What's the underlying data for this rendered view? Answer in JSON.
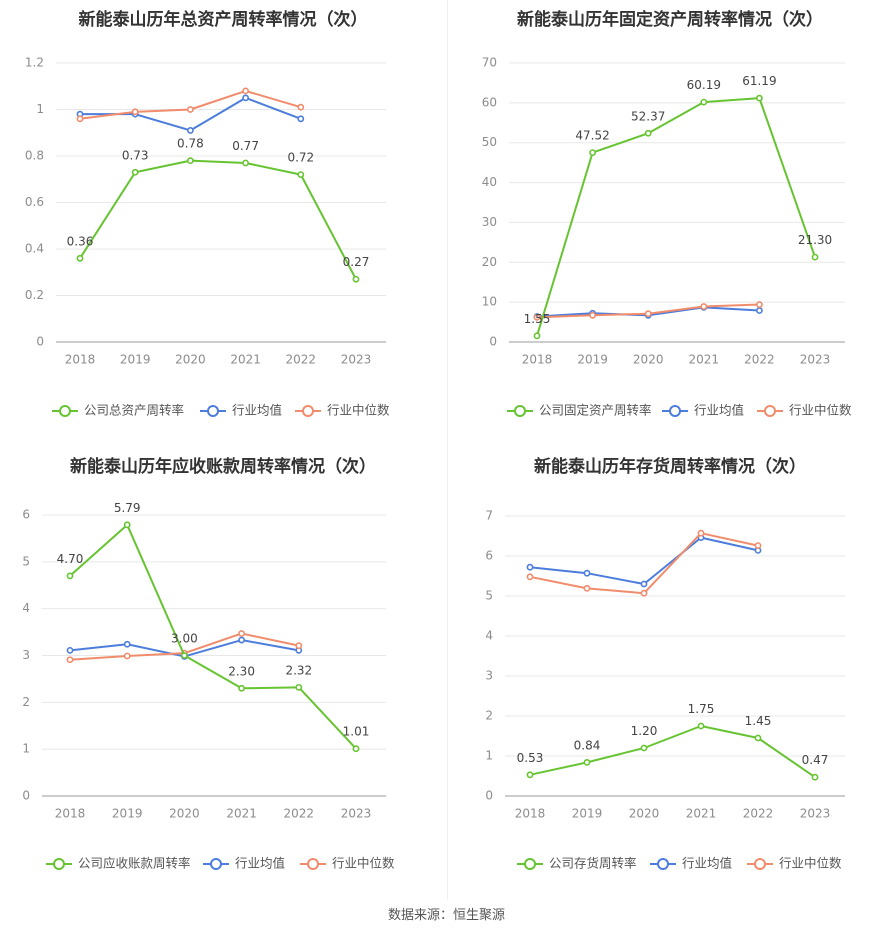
{
  "source_text": "数据来源：恒生聚源",
  "colors": {
    "company": "#66c431",
    "industry_avg": "#4c7ddc",
    "industry_median": "#f08c6c",
    "axis_text": "#8c8c8c",
    "grid": "#e8e8e8",
    "title": "#333333",
    "label": "#444444"
  },
  "legend_icon": "circle-line-icon",
  "chart_data": [
    {
      "type": "line",
      "title": "新能泰山历年总资产周转率情况（次）",
      "categories": [
        "2018",
        "2019",
        "2020",
        "2021",
        "2022",
        "2023"
      ],
      "yticks": [
        "0",
        "0.2",
        "0.4",
        "0.6",
        "0.8",
        "1",
        "1.2"
      ],
      "ylim": [
        0,
        1.2
      ],
      "grid": true,
      "legend_position": "bottom",
      "series": [
        {
          "name": "公司总资产周转率",
          "key": "company",
          "values": [
            0.36,
            0.73,
            0.78,
            0.77,
            0.72,
            0.27
          ],
          "labels": [
            "0.36",
            "0.73",
            "0.78",
            "0.77",
            "0.72",
            "0.27"
          ]
        },
        {
          "name": "行业均值",
          "key": "industry_avg",
          "values": [
            0.98,
            0.98,
            0.91,
            1.05,
            0.96,
            null
          ]
        },
        {
          "name": "行业中位数",
          "key": "industry_median",
          "values": [
            0.96,
            0.99,
            1.0,
            1.08,
            1.01,
            null
          ]
        }
      ]
    },
    {
      "type": "line",
      "title": "新能泰山历年固定资产周转率情况（次）",
      "categories": [
        "2018",
        "2019",
        "2020",
        "2021",
        "2022",
        "2023"
      ],
      "yticks": [
        "0",
        "10",
        "20",
        "30",
        "40",
        "50",
        "60",
        "70"
      ],
      "ylim": [
        0,
        70
      ],
      "grid": true,
      "legend_position": "bottom",
      "series": [
        {
          "name": "公司固定资产周转率",
          "key": "company",
          "values": [
            1.55,
            47.52,
            52.37,
            60.19,
            61.19,
            21.3
          ],
          "labels": [
            "1.55",
            "47.52",
            "52.37",
            "60.19",
            "61.19",
            "21.30"
          ]
        },
        {
          "name": "行业均值",
          "key": "industry_avg",
          "values": [
            6.4,
            7.2,
            6.7,
            8.7,
            7.9,
            null
          ]
        },
        {
          "name": "行业中位数",
          "key": "industry_median",
          "values": [
            6.2,
            6.7,
            7.1,
            8.9,
            9.4,
            null
          ]
        }
      ]
    },
    {
      "type": "line",
      "title": "新能泰山历年应收账款周转率情况（次）",
      "categories": [
        "2018",
        "2019",
        "2020",
        "2021",
        "2022",
        "2023"
      ],
      "yticks": [
        "0",
        "1",
        "2",
        "3",
        "4",
        "5",
        "6"
      ],
      "ylim": [
        0,
        6
      ],
      "grid": true,
      "legend_position": "bottom",
      "series": [
        {
          "name": "公司应收账款周转率",
          "key": "company",
          "values": [
            4.7,
            5.79,
            3.0,
            2.3,
            2.32,
            1.01
          ],
          "labels": [
            "4.70",
            "5.79",
            "3.00",
            "2.30",
            "2.32",
            "1.01"
          ]
        },
        {
          "name": "行业均值",
          "key": "industry_avg",
          "values": [
            3.11,
            3.24,
            2.98,
            3.33,
            3.11,
            null
          ]
        },
        {
          "name": "行业中位数",
          "key": "industry_median",
          "values": [
            2.91,
            2.99,
            3.05,
            3.47,
            3.21,
            null
          ]
        }
      ]
    },
    {
      "type": "line",
      "title": "新能泰山历年存货周转率情况（次）",
      "categories": [
        "2018",
        "2019",
        "2020",
        "2021",
        "2022",
        "2023"
      ],
      "yticks": [
        "0",
        "1",
        "2",
        "3",
        "4",
        "5",
        "6",
        "7"
      ],
      "ylim": [
        0,
        7
      ],
      "grid": true,
      "legend_position": "bottom",
      "series": [
        {
          "name": "公司存货周转率",
          "key": "company",
          "values": [
            0.53,
            0.84,
            1.2,
            1.75,
            1.45,
            0.47
          ],
          "labels": [
            "0.53",
            "0.84",
            "1.20",
            "1.75",
            "1.45",
            "0.47"
          ]
        },
        {
          "name": "行业均值",
          "key": "industry_avg",
          "values": [
            5.72,
            5.57,
            5.3,
            6.46,
            6.14,
            null
          ]
        },
        {
          "name": "行业中位数",
          "key": "industry_median",
          "values": [
            5.48,
            5.19,
            5.07,
            6.57,
            6.26,
            null
          ]
        }
      ]
    }
  ]
}
